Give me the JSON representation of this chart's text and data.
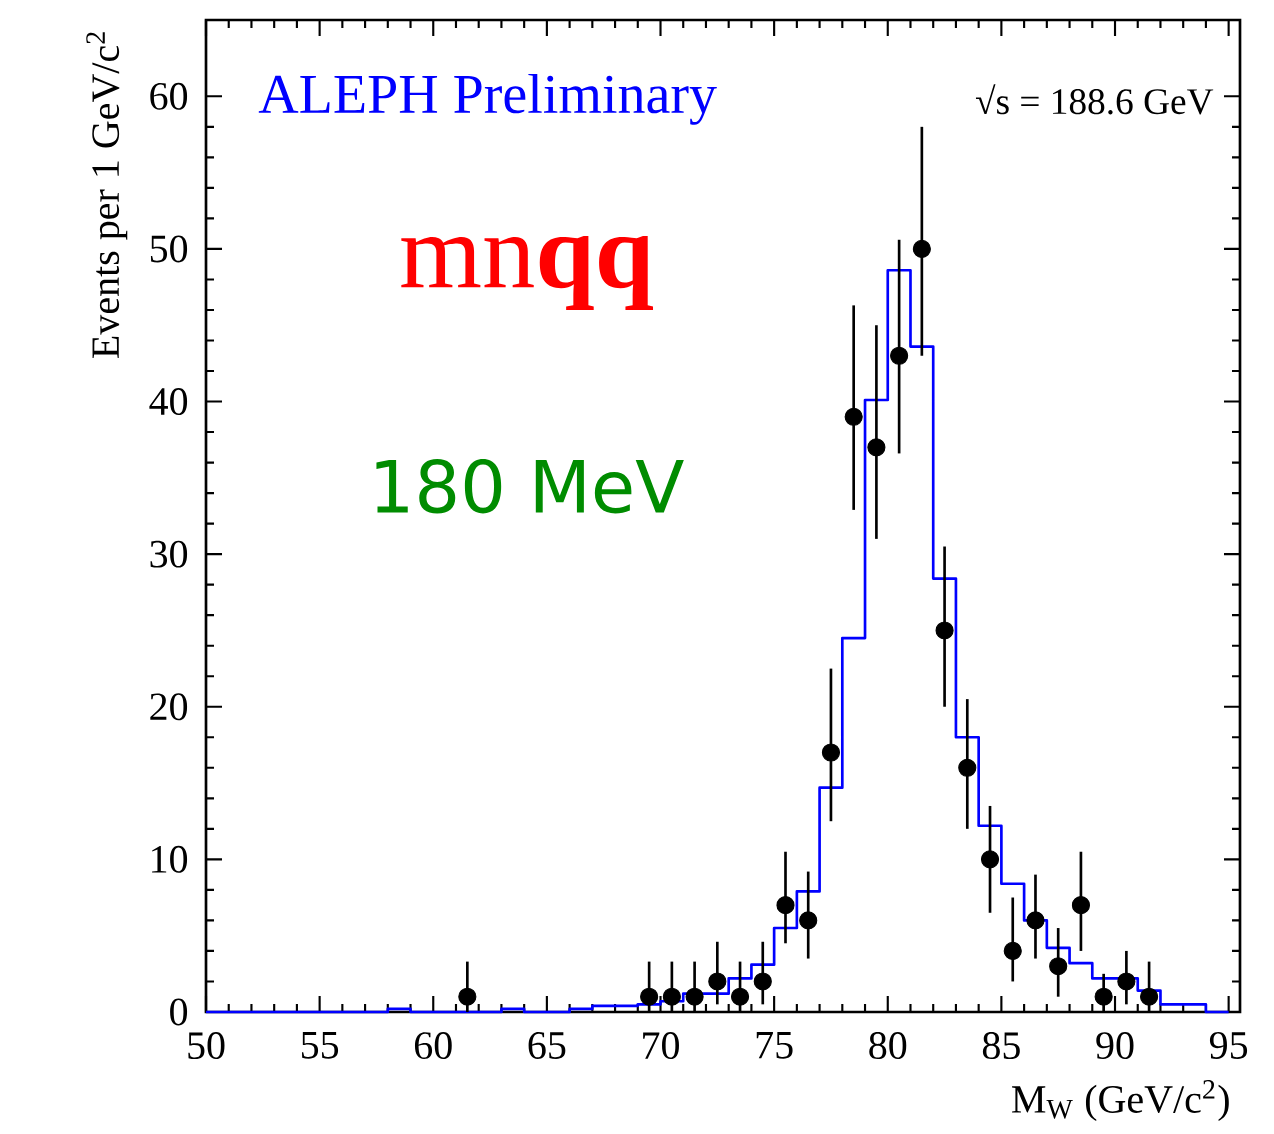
{
  "chart_data": {
    "type": "histogram",
    "xlabel": "M$_{W}$ (GeV/c$^{2}$)",
    "ylabel": "Events per 1 GeV/c$^{2}$",
    "annotations": [
      "ALEPH Preliminary",
      "√s = 188.6 GeV",
      "mn**qq**",
      "180 MeV"
    ],
    "xlim": [
      50,
      95.5
    ],
    "ylim": [
      0,
      65
    ],
    "xticks": [
      50,
      55,
      60,
      65,
      70,
      75,
      80,
      85,
      90,
      95
    ],
    "yticks": [
      0,
      10,
      20,
      30,
      40,
      50,
      60
    ],
    "grid": false,
    "series": [
      {
        "color": "#0000ff",
        "bins": [
          50,
          51,
          52,
          53,
          54,
          55,
          56,
          57,
          58,
          59,
          60,
          61,
          62,
          63,
          64,
          65,
          66,
          67,
          68,
          69,
          70,
          71,
          72,
          73,
          74,
          75,
          76,
          77,
          78,
          79,
          80,
          81,
          82,
          83,
          84,
          85,
          86,
          87,
          88,
          89,
          90,
          91,
          92,
          93,
          94,
          95
        ],
        "values": [
          0,
          0,
          0,
          0,
          0,
          0,
          0,
          0,
          0.2,
          0,
          0,
          0,
          0,
          0.2,
          0,
          0,
          0.2,
          0.4,
          0.4,
          0.5,
          0.7,
          1.2,
          1.2,
          2.2,
          3.1,
          5.5,
          7.9,
          14.7,
          24.5,
          40.1,
          48.6,
          43.6,
          28.4,
          18,
          12.2,
          8.4,
          6,
          4.2,
          3.2,
          2.2,
          2.2,
          1.4,
          0.5,
          0.5,
          0
        ]
      },
      {
        "type": "scatter",
        "color": "#000000",
        "x": [
          61.5,
          69.5,
          70.5,
          71.5,
          72.5,
          73.5,
          74.5,
          75.5,
          76.5,
          77.5,
          78.5,
          79.5,
          80.5,
          81.5,
          82.5,
          83.5,
          84.5,
          85.5,
          86.5,
          87.5,
          88.5,
          89.5,
          90.5,
          91.5
        ],
        "values": [
          1,
          1,
          1,
          1,
          2,
          1,
          2,
          7,
          6,
          17,
          39,
          37,
          43,
          50,
          25,
          16,
          10,
          4,
          6,
          3,
          7,
          1,
          2,
          1
        ],
        "errors": [
          [
            0,
            3.3
          ],
          [
            0,
            3.3
          ],
          [
            0,
            3.3
          ],
          [
            0,
            3.3
          ],
          [
            0.5,
            4.6
          ],
          [
            0,
            3.3
          ],
          [
            0.5,
            4.6
          ],
          [
            4.5,
            10.5
          ],
          [
            3.5,
            9.2
          ],
          [
            12.5,
            22.5
          ],
          [
            32.9,
            46.3
          ],
          [
            31,
            45
          ],
          [
            36.6,
            50.6
          ],
          [
            43,
            58
          ],
          [
            20,
            30.5
          ],
          [
            12,
            20.5
          ],
          [
            6.5,
            13.5
          ],
          [
            2,
            7.5
          ],
          [
            3.5,
            9
          ],
          [
            1,
            5.5
          ],
          [
            4,
            10.5
          ],
          [
            0,
            2.5
          ],
          [
            0.5,
            4
          ],
          [
            0,
            3.3
          ]
        ]
      }
    ]
  }
}
